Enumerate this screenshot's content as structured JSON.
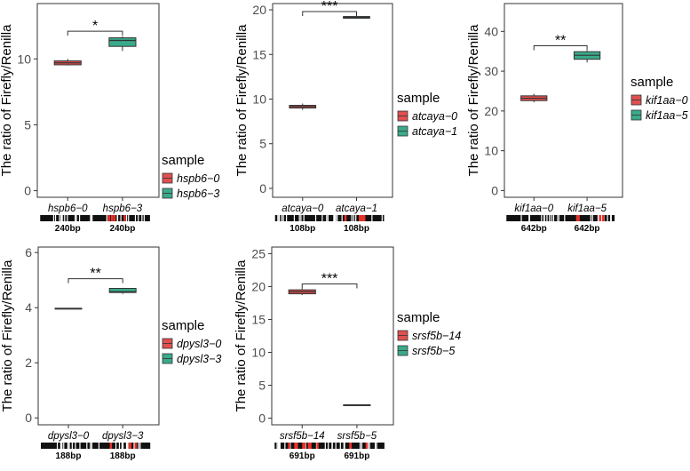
{
  "colors": {
    "group0": "#e05050",
    "group1": "#3aaa8a",
    "frame": "#333333",
    "mark_red": "#e8322a"
  },
  "chart_data": [
    {
      "type": "box",
      "ylabel": "The ratio of Firefly/Renilla",
      "ylim": [
        -0.5,
        14.2
      ],
      "yticks": [
        0,
        5,
        10
      ],
      "categories": [
        "hspb6−0",
        "hspb6−3"
      ],
      "bp_labels": [
        "240bp",
        "240bp"
      ],
      "boxes": [
        {
          "min": 9.5,
          "q1": 9.55,
          "median": 9.7,
          "q3": 9.85,
          "max": 10.0,
          "color": "group0"
        },
        {
          "min": 10.6,
          "q1": 10.95,
          "median": 11.4,
          "q3": 11.6,
          "max": 11.7,
          "color": "group1"
        }
      ],
      "significance": {
        "label": "*",
        "y": 12.1
      },
      "legend": {
        "title": "sample",
        "entries": [
          "hspb6−0",
          "hspb6−3"
        ]
      }
    },
    {
      "type": "box",
      "ylabel": "The ratio of Firefly/Renilla",
      "ylim": [
        -1.0,
        20.7
      ],
      "yticks": [
        0,
        5,
        10,
        15,
        20
      ],
      "categories": [
        "atcaya−0",
        "atcaya−1"
      ],
      "bp_labels": [
        "108bp",
        "108bp"
      ],
      "boxes": [
        {
          "min": 8.8,
          "q1": 9.0,
          "median": 9.15,
          "q3": 9.3,
          "max": 9.5,
          "color": "group0"
        },
        {
          "min": 19.0,
          "q1": 19.05,
          "median": 19.15,
          "q3": 19.25,
          "max": 19.3,
          "color": "group1"
        }
      ],
      "significance": {
        "label": "***",
        "y": 19.8
      },
      "legend": {
        "title": "sample",
        "entries": [
          "atcaya−0",
          "atcaya−1"
        ]
      }
    },
    {
      "type": "box",
      "ylabel": "The ratio of Firefly/Renilla",
      "ylim": [
        -1.7,
        47.0
      ],
      "yticks": [
        0,
        10,
        20,
        30,
        40
      ],
      "categories": [
        "kif1aa−0",
        "kif1aa−5"
      ],
      "bp_labels": [
        "642bp",
        "642bp"
      ],
      "boxes": [
        {
          "min": 22.2,
          "q1": 22.6,
          "median": 23.2,
          "q3": 23.8,
          "max": 24.3,
          "color": "group0"
        },
        {
          "min": 32.2,
          "q1": 33.0,
          "median": 34.0,
          "q3": 34.9,
          "max": 35.2,
          "color": "group1"
        }
      ],
      "significance": {
        "label": "**",
        "y": 36.4
      },
      "legend": {
        "title": "sample",
        "entries": [
          "kif1aa−0",
          "kif1aa−5"
        ]
      }
    },
    {
      "type": "box",
      "ylabel": "The ratio of Firefly/Renilla",
      "ylim": [
        -0.25,
        6.2
      ],
      "yticks": [
        0,
        2,
        4,
        6
      ],
      "categories": [
        "dpysl3−0",
        "dpysl3−3"
      ],
      "bp_labels": [
        "188bp",
        "188bp"
      ],
      "boxes": [
        {
          "min": 3.95,
          "q1": 3.96,
          "median": 3.97,
          "q3": 3.98,
          "max": 3.99,
          "color": "group0"
        },
        {
          "min": 4.5,
          "q1": 4.55,
          "median": 4.58,
          "q3": 4.7,
          "max": 4.72,
          "color": "group1"
        }
      ],
      "significance": {
        "label": "**",
        "y": 5.05
      },
      "legend": {
        "title": "sample",
        "entries": [
          "dpysl3−0",
          "dpysl3−3"
        ]
      }
    },
    {
      "type": "box",
      "ylabel": "The ratio of Firefly/Renilla",
      "ylim": [
        -1.0,
        26.0
      ],
      "yticks": [
        0,
        5,
        10,
        15,
        20,
        25
      ],
      "categories": [
        "srsf5b−14",
        "srsf5b−5"
      ],
      "bp_labels": [
        "691bp",
        "691bp"
      ],
      "boxes": [
        {
          "min": 18.7,
          "q1": 18.9,
          "median": 19.2,
          "q3": 19.5,
          "max": 19.7,
          "color": "group0"
        },
        {
          "min": 2.0,
          "q1": 2.02,
          "median": 2.03,
          "q3": 2.04,
          "max": 2.05,
          "color": "group1"
        }
      ],
      "significance": {
        "label": "***",
        "y": 20.4
      },
      "legend": {
        "title": "sample",
        "entries": [
          "srsf5b−14",
          "srsf5b−5"
        ]
      }
    }
  ]
}
